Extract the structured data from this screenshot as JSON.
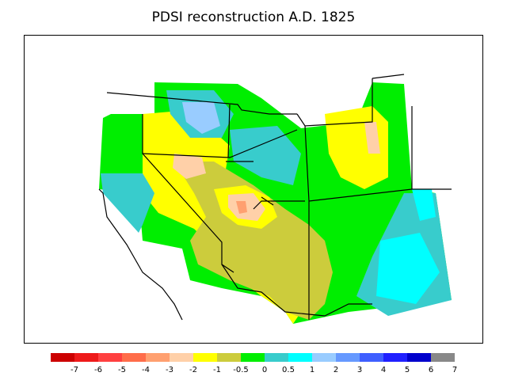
{
  "title": "PDSI reconstruction A.D. 1825",
  "legend": {
    "bins": [
      {
        "color": "#cc0000"
      },
      {
        "color": "#ee1a1a"
      },
      {
        "color": "#ff4040"
      },
      {
        "color": "#ff6d4a"
      },
      {
        "color": "#ffa070"
      },
      {
        "color": "#ffd0a8"
      },
      {
        "color": "#ffff00"
      },
      {
        "color": "#cccc3c"
      },
      {
        "color": "#00ee00"
      },
      {
        "color": "#38cccc"
      },
      {
        "color": "#00ffff"
      },
      {
        "color": "#99ccff"
      },
      {
        "color": "#6699ff"
      },
      {
        "color": "#3f5fff"
      },
      {
        "color": "#2020ff"
      },
      {
        "color": "#0000cc"
      },
      {
        "color": "#888888"
      }
    ],
    "labels": [
      "-7",
      "-6",
      "-5",
      "-4",
      "-3",
      "-2",
      "-1",
      "-0.5",
      "0",
      "0.5",
      "1",
      "2",
      "3",
      "4",
      "5",
      "6",
      "7"
    ]
  }
}
